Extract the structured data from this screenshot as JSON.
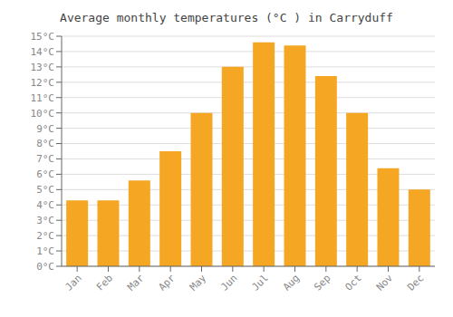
{
  "chart_data": {
    "type": "bar",
    "title": "Average monthly temperatures (°C ) in Carryduff",
    "categories": [
      "Jan",
      "Feb",
      "Mar",
      "Apr",
      "May",
      "Jun",
      "Jul",
      "Aug",
      "Sep",
      "Oct",
      "Nov",
      "Dec"
    ],
    "values": [
      4.3,
      4.3,
      5.6,
      7.5,
      10.0,
      13.0,
      14.6,
      14.4,
      12.4,
      10.0,
      6.4,
      5.0
    ],
    "color": "#F5A623",
    "ylim": [
      0,
      15
    ],
    "yticks": [
      {
        "value": 0,
        "label": "0°C"
      },
      {
        "value": 1,
        "label": "1°C"
      },
      {
        "value": 2,
        "label": "2°C"
      },
      {
        "value": 3,
        "label": "3°C"
      },
      {
        "value": 4,
        "label": "4°C"
      },
      {
        "value": 5,
        "label": "5°C"
      },
      {
        "value": 6,
        "label": "6°C"
      },
      {
        "value": 7,
        "label": "7°C"
      },
      {
        "value": 8,
        "label": "8°C"
      },
      {
        "value": 9,
        "label": "9°C"
      },
      {
        "value": 10,
        "label": "10°C"
      },
      {
        "value": 11,
        "label": "11°C"
      },
      {
        "value": 12,
        "label": "12°C"
      },
      {
        "value": 13,
        "label": "13°C"
      },
      {
        "value": 14,
        "label": "14°C"
      },
      {
        "value": 15,
        "label": "15°C"
      }
    ],
    "grid": true
  }
}
